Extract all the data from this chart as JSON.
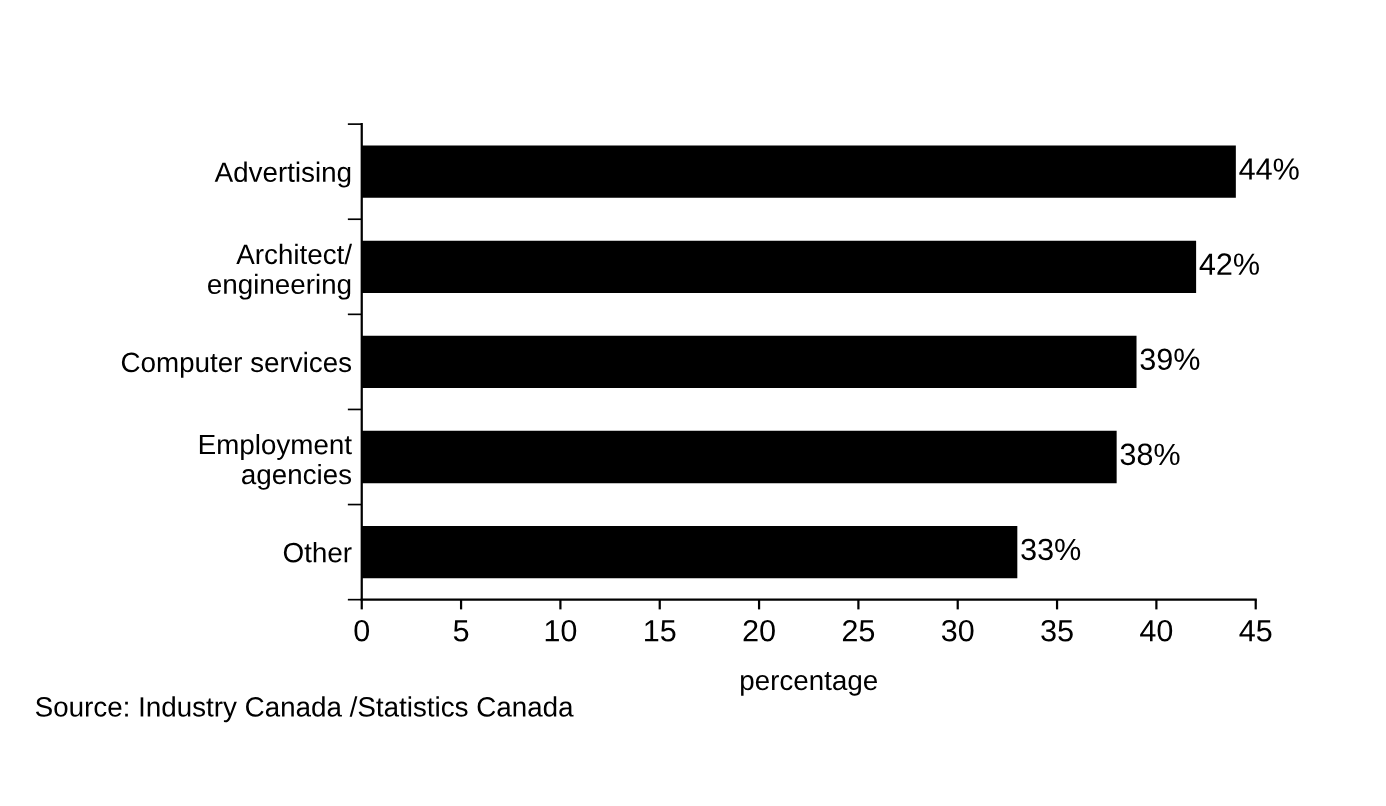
{
  "chart_data": {
    "type": "bar",
    "orientation": "horizontal",
    "categories": [
      "Advertising",
      "Architect/\nengineering",
      "Computer services",
      "Employment\nagencies",
      "Other"
    ],
    "values": [
      44,
      42,
      39,
      38,
      33
    ],
    "value_labels": [
      "44%",
      "42%",
      "39%",
      "38%",
      "33%"
    ],
    "color": "#000000",
    "xlabel": "percentage",
    "xlim": [
      0,
      45
    ],
    "xticks": [
      0,
      5,
      10,
      15,
      20,
      25,
      30,
      35,
      40,
      45
    ],
    "grid": false,
    "legend": false,
    "annotations": [
      "Source: Industry Canada /Statistics Canada"
    ]
  }
}
